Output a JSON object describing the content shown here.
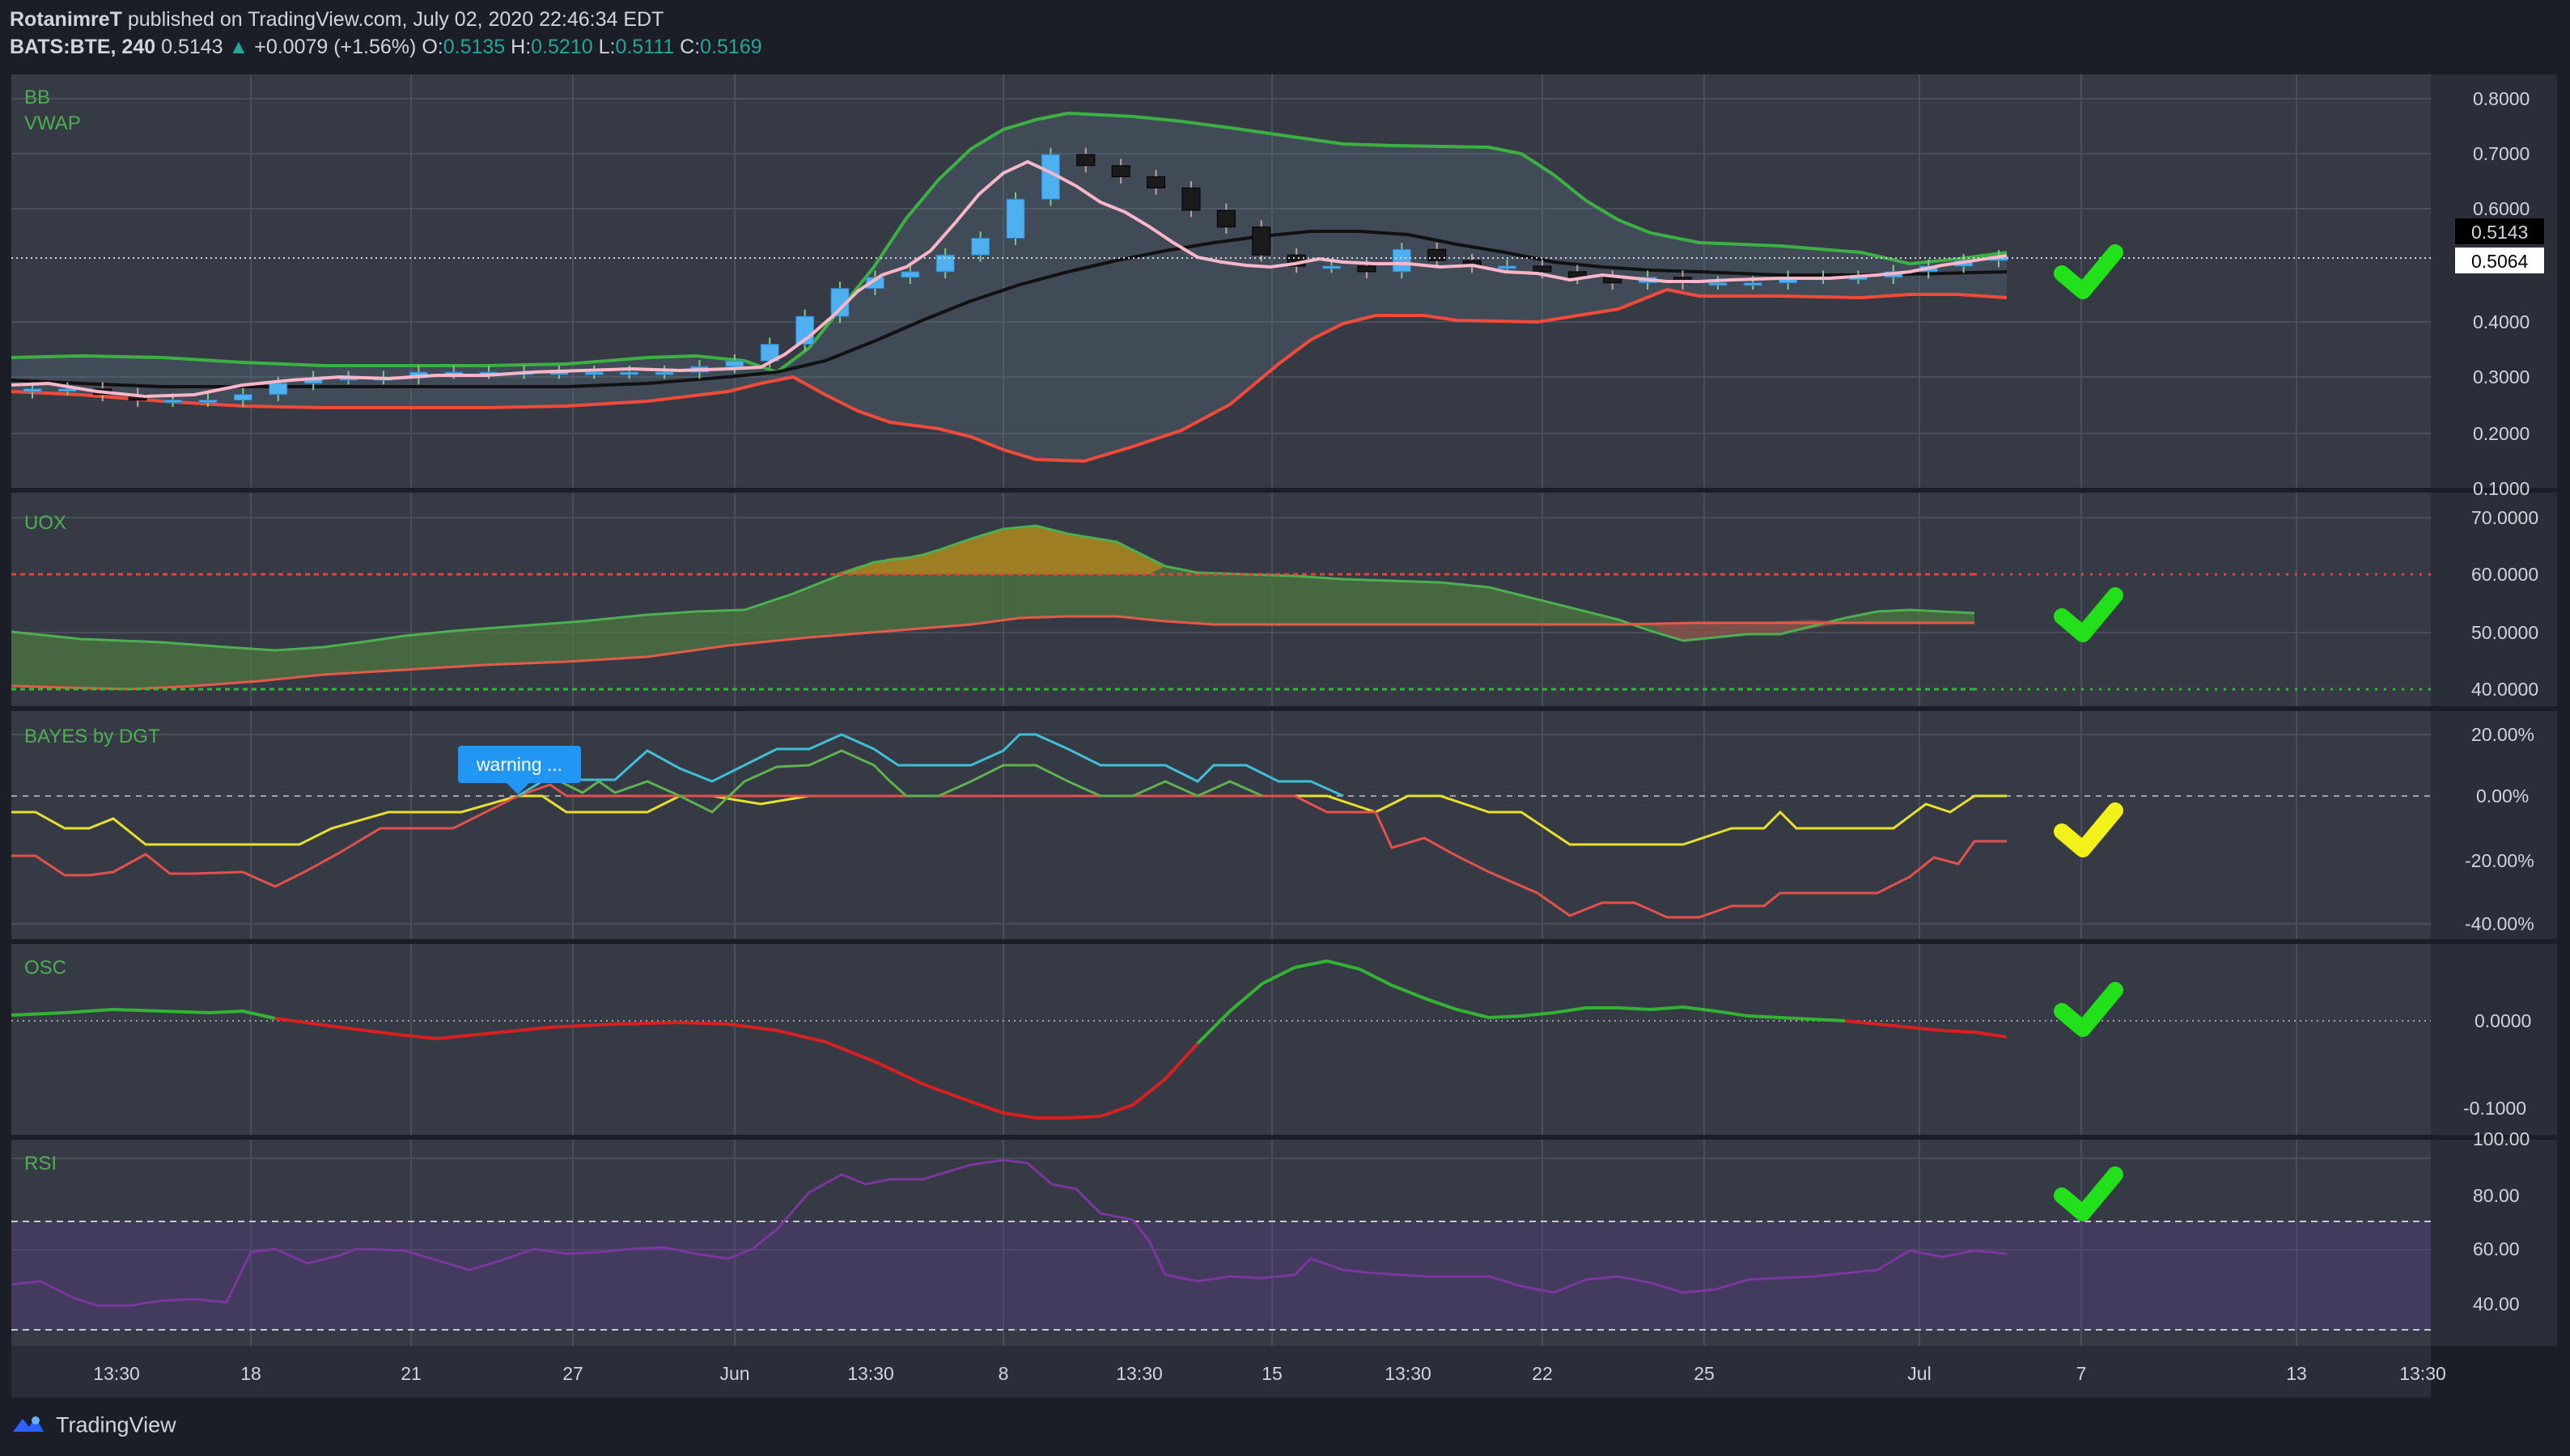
{
  "header": {
    "author": "RotanimreT",
    "published_text": "published on TradingView.com, July 02, 2020 22:46:34 EDT",
    "symbol": "BATS:BTE, 240",
    "last": "0.5143",
    "change_arrow": "▲",
    "change": "+0.0079 (+1.56%)",
    "o_label": "O:",
    "o_value": "0.5135",
    "h_label": "H:",
    "h_value": "0.5210",
    "l_label": "L:",
    "l_value": "0.5111",
    "c_label": "C:",
    "c_value": "0.5169"
  },
  "footer": {
    "brand": "TradingView"
  },
  "colors": {
    "background": "#1b1e26",
    "pane": "#363a45",
    "grid": "#4a4e59",
    "up_candle": "#4fb0f0",
    "down_candle": "#1a1a1a",
    "bb_upper": "#3cb043",
    "bb_lower": "#f04a3a",
    "bb_basis": "#111111",
    "vwap": "#f8b6c8",
    "check_green": "#22e01a",
    "check_yellow": "#f2f21a"
  },
  "chart_data": [
    {
      "type": "candlestick",
      "title": "BB / VWAP",
      "labels": [
        "BB",
        "VWAP"
      ],
      "y_ticks": [
        "0.8000",
        "0.7000",
        "0.6000",
        "0.4000",
        "0.3000",
        "0.2000",
        "0.1000"
      ],
      "ylim": [
        0.1,
        0.8
      ],
      "price_tags": [
        "0.5143",
        "0.5064"
      ],
      "close_approx": [
        0.28,
        0.28,
        0.27,
        0.26,
        0.26,
        0.26,
        0.27,
        0.29,
        0.3,
        0.3,
        0.3,
        0.31,
        0.31,
        0.31,
        0.31,
        0.31,
        0.31,
        0.31,
        0.31,
        0.32,
        0.33,
        0.36,
        0.41,
        0.46,
        0.48,
        0.49,
        0.52,
        0.55,
        0.62,
        0.7,
        0.68,
        0.66,
        0.64,
        0.6,
        0.57,
        0.52,
        0.5,
        0.5,
        0.49,
        0.53,
        0.51,
        0.5,
        0.5,
        0.49,
        0.48,
        0.47,
        0.48,
        0.47,
        0.47,
        0.47,
        0.48,
        0.48,
        0.48,
        0.49,
        0.5,
        0.51,
        0.5169
      ],
      "bb_upper_approx": [
        0.335,
        0.335,
        0.33,
        0.325,
        0.32,
        0.32,
        0.325,
        0.325,
        0.33,
        0.335,
        0.34,
        0.34,
        0.33,
        0.34,
        0.38,
        0.46,
        0.6,
        0.74,
        0.77,
        0.76,
        0.72,
        0.7,
        0.7,
        0.67,
        0.61,
        0.55,
        0.53,
        0.525,
        0.52,
        0.52,
        0.52,
        0.525
      ],
      "bb_basis_approx": [
        0.295,
        0.29,
        0.28,
        0.28,
        0.28,
        0.28,
        0.285,
        0.29,
        0.295,
        0.3,
        0.305,
        0.32,
        0.36,
        0.4,
        0.46,
        0.51,
        0.54,
        0.545,
        0.53,
        0.51,
        0.5,
        0.49,
        0.48,
        0.475,
        0.475,
        0.48,
        0.48
      ],
      "bb_lower_approx": [
        0.26,
        0.25,
        0.24,
        0.24,
        0.245,
        0.25,
        0.25,
        0.25,
        0.26,
        0.28,
        0.29,
        0.26,
        0.22,
        0.16,
        0.17,
        0.27,
        0.38,
        0.41,
        0.41,
        0.4,
        0.42,
        0.44,
        0.44,
        0.445,
        0.44
      ]
    },
    {
      "type": "area",
      "title": "UOX",
      "labels": [
        "UOX"
      ],
      "y_ticks": [
        "70.0000",
        "60.0000",
        "50.0000",
        "40.0000"
      ],
      "ylim": [
        37,
        72
      ],
      "levels": [
        60,
        40
      ],
      "fast_approx": [
        50,
        49,
        48,
        48,
        46,
        47,
        49,
        50,
        50,
        50,
        51,
        53,
        54,
        55,
        62,
        65,
        67,
        69,
        66,
        63,
        59,
        58,
        57,
        55,
        50,
        47,
        48,
        49,
        53,
        53,
        53
      ],
      "slow_approx": [
        40,
        40,
        40,
        41,
        43,
        44,
        45,
        46,
        47,
        48,
        49,
        50,
        51,
        52,
        53,
        52,
        51,
        51,
        51,
        51,
        51,
        51,
        51,
        51,
        52,
        52
      ]
    },
    {
      "type": "line",
      "title": "BAYES by DGT",
      "labels": [
        "BAYES by DGT"
      ],
      "annotation": "warning ...",
      "y_ticks": [
        "20.00%",
        "0.00%",
        "-20.00%",
        "-40.00%"
      ],
      "ylim": [
        -42,
        22
      ],
      "yellow_approx": [
        -5,
        -20,
        -15,
        -15,
        -20,
        -5,
        -5,
        0,
        0,
        -2,
        -5,
        0,
        0,
        -5,
        -20,
        -15,
        -15,
        -20,
        -15,
        -10,
        -10,
        0,
        -5,
        0
      ],
      "red_approx": [
        -18,
        -33,
        -23,
        -23,
        -28,
        -10,
        -10,
        -5,
        -15,
        -15,
        -28,
        -38,
        -35,
        -28,
        -28,
        -20,
        -13,
        -13
      ],
      "cyan_approx": [
        10,
        10,
        5,
        10,
        20,
        10,
        10,
        20,
        10,
        10,
        5
      ],
      "green_approx": [
        5,
        0,
        5,
        0,
        15,
        5,
        5,
        15,
        5,
        0,
        0
      ]
    },
    {
      "type": "line",
      "title": "OSC",
      "labels": [
        "OSC"
      ],
      "y_ticks": [
        "0.0000",
        "-0.1000"
      ],
      "ylim": [
        -0.13,
        0.07
      ],
      "values_approx": [
        0.007,
        0.012,
        0.01,
        0.005,
        -0.01,
        -0.02,
        -0.01,
        -0.005,
        -0.005,
        -0.03,
        -0.1,
        -0.11,
        -0.04,
        0.03,
        0.06,
        0.03,
        0.005,
        0.01,
        0.012,
        0.002,
        -0.005,
        -0.015
      ]
    },
    {
      "type": "area",
      "title": "RSI",
      "labels": [
        "RSI"
      ],
      "y_ticks": [
        "100.00",
        "80.00",
        "60.00",
        "40.00"
      ],
      "ylim": [
        30,
        100
      ],
      "bands": [
        70,
        30
      ],
      "values_approx": [
        48,
        38,
        40,
        58,
        58,
        60,
        58,
        52,
        58,
        60,
        58,
        65,
        82,
        85,
        82,
        88,
        90,
        72,
        60,
        58,
        57,
        58,
        52,
        52,
        48,
        42,
        50,
        52,
        58,
        60
      ]
    }
  ],
  "time_axis": [
    "13:30",
    "18",
    "21",
    "27",
    "Jun",
    "13:30",
    "8",
    "13:30",
    "15",
    "13:30",
    "22",
    "25",
    "Jul",
    "7",
    "13",
    "13:30"
  ],
  "status_checks": [
    {
      "pane": "BB",
      "color": "green",
      "icon": "checkmark-icon"
    },
    {
      "pane": "UOX",
      "color": "green",
      "icon": "checkmark-icon"
    },
    {
      "pane": "BAYES by DGT",
      "color": "yellow",
      "icon": "checkmark-icon"
    },
    {
      "pane": "OSC",
      "color": "green",
      "icon": "checkmark-icon"
    },
    {
      "pane": "RSI",
      "color": "green",
      "icon": "checkmark-icon"
    }
  ]
}
